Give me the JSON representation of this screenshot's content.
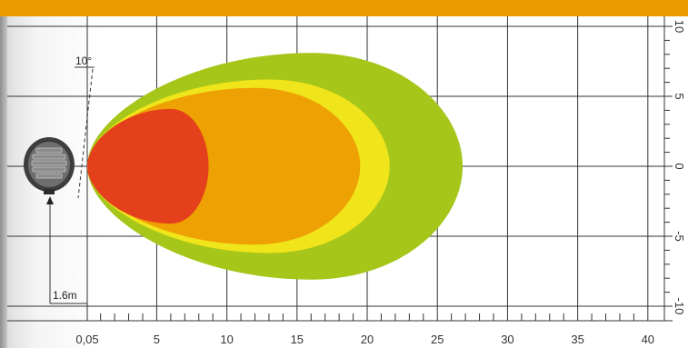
{
  "chart_data": {
    "type": "area",
    "title": "",
    "xlabel": "",
    "ylabel": "",
    "x_ticks": [
      "0,05",
      "5",
      "10",
      "15",
      "20",
      "25",
      "30",
      "35",
      "40"
    ],
    "x_tick_values": [
      0.05,
      5,
      10,
      15,
      20,
      25,
      30,
      35,
      40
    ],
    "y_ticks": [
      "10",
      "5",
      "0",
      "-5",
      "-10"
    ],
    "y_tick_values": [
      10,
      5,
      0,
      -5,
      -10
    ],
    "xlim": [
      0.05,
      40.5
    ],
    "ylim": [
      -10.5,
      10.5
    ],
    "grid": true,
    "zones": [
      {
        "color": "#a6c61a",
        "reach": 26.8,
        "half_width": 8.1,
        "widest_at": 16
      },
      {
        "color": "#f0e41a",
        "reach": 21.6,
        "half_width": 6.2,
        "widest_at": 13
      },
      {
        "color": "#eea102",
        "reach": 19.5,
        "half_width": 5.6,
        "widest_at": 12
      },
      {
        "color": "#e5401c",
        "reach": 8.7,
        "half_width": 4.1,
        "widest_at": 6
      }
    ],
    "annotations": {
      "angle": "10°",
      "mount_height": "1.6m"
    }
  },
  "colors": {
    "accent": "#eb9c00",
    "grid": "#333333"
  },
  "icons": {
    "lamp": "round-work-lamp-icon",
    "arrow": "arrow-up-icon"
  }
}
